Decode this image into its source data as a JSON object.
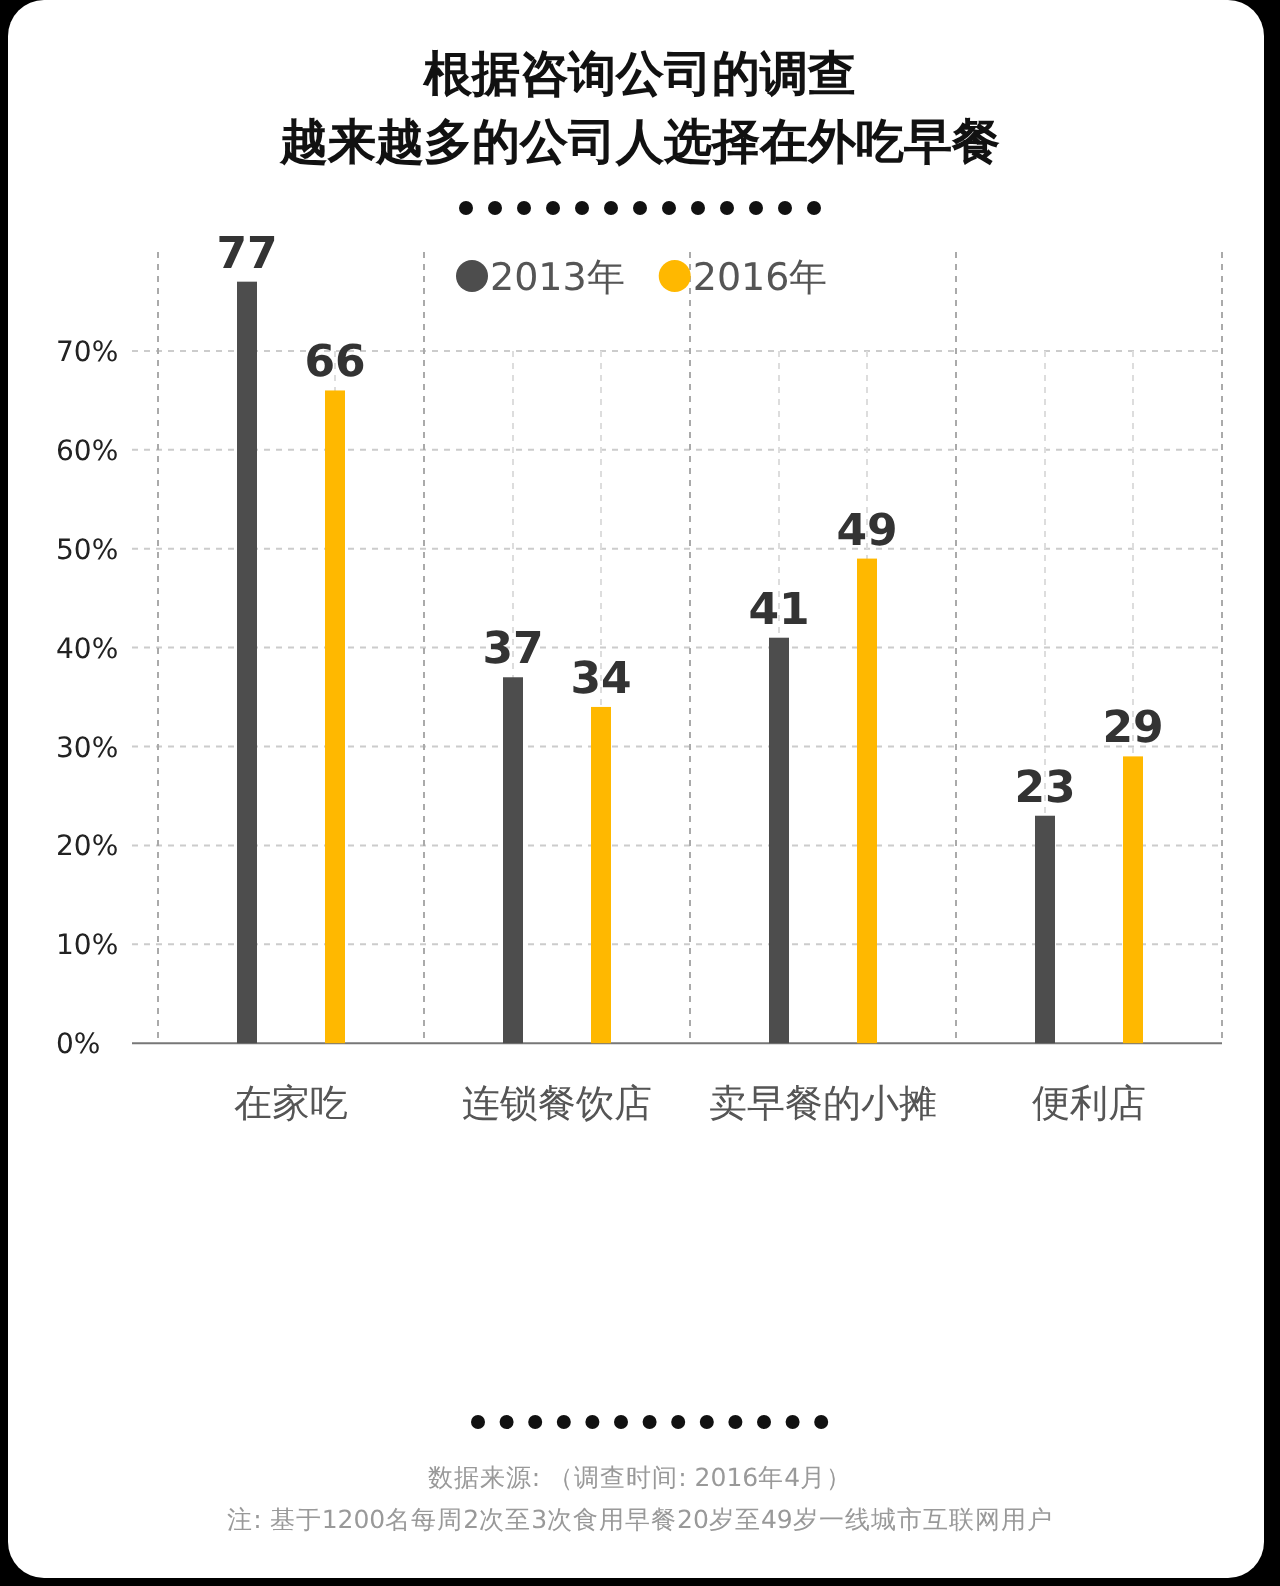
{
  "chart_data": {
    "type": "bar",
    "title": "根据咨询公司的调查",
    "subtitle": "越来越多的公司人选择在外吃早餐",
    "categories": [
      "在家吃",
      "连锁餐饮店",
      "卖早餐的小摊",
      "便利店"
    ],
    "series": [
      {
        "name": "2013年",
        "color": "#4d4d4d",
        "values": [
          77,
          37,
          41,
          23
        ]
      },
      {
        "name": "2016年",
        "color": "#ffb800",
        "values": [
          66,
          34,
          49,
          29
        ]
      }
    ],
    "ylim": [
      0,
      80
    ],
    "yticks": [
      {
        "value": 0,
        "label": "0%"
      },
      {
        "value": 10,
        "label": "10%"
      },
      {
        "value": 20,
        "label": "20%"
      },
      {
        "value": 30,
        "label": "30%"
      },
      {
        "value": 40,
        "label": "40%"
      },
      {
        "value": 50,
        "label": "50%"
      },
      {
        "value": 60,
        "label": "60%"
      },
      {
        "value": 70,
        "label": "70%"
      }
    ],
    "grid": true,
    "legend": "top",
    "data_labels": true,
    "annotations": [
      "数据来源: （调查时间: 2016年4月）",
      "注: 基于1200名每周2次至3次食用早餐20岁至49岁一线城市互联网用户"
    ]
  }
}
